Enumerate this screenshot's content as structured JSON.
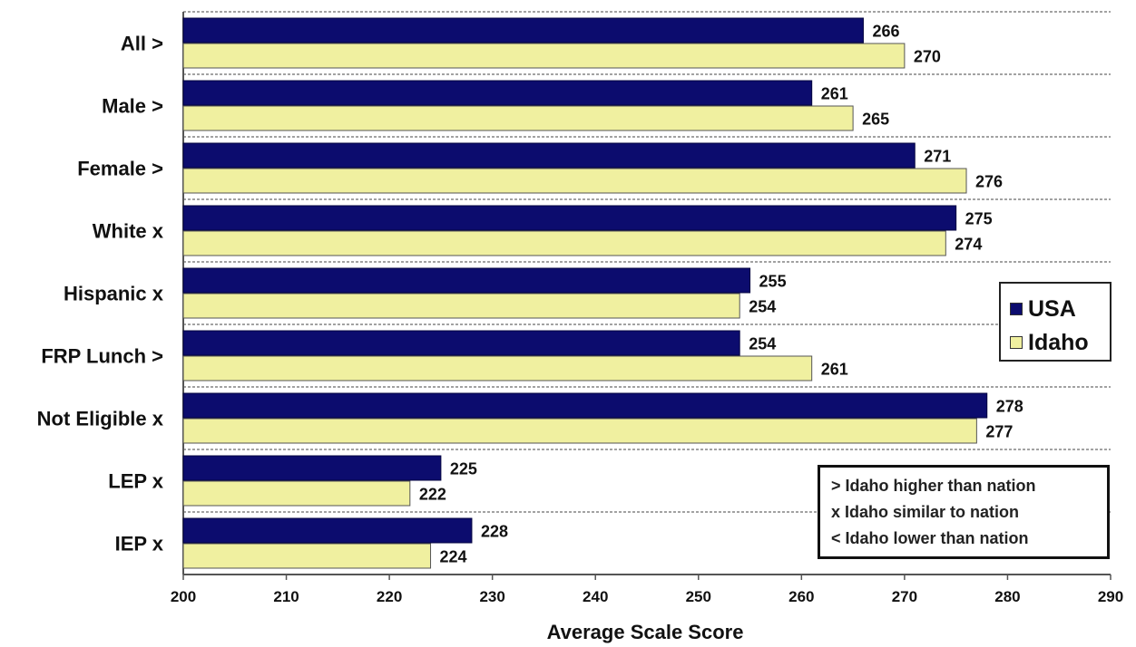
{
  "chart_data": {
    "type": "bar",
    "orientation": "horizontal",
    "categories": [
      "All >",
      "Male >",
      "Female >",
      "White x",
      "Hispanic x",
      "FRP Lunch >",
      "Not Eligible x",
      "LEP x",
      "IEP x"
    ],
    "series": [
      {
        "name": "USA",
        "color": "#0c0c6e",
        "values": [
          266,
          261,
          271,
          275,
          255,
          254,
          278,
          225,
          228
        ]
      },
      {
        "name": "Idaho",
        "color": "#f0f0a0",
        "values": [
          270,
          265,
          276,
          274,
          254,
          261,
          277,
          222,
          224
        ]
      }
    ],
    "xlabel": "Average Scale Score",
    "ylabel": "",
    "xlim": [
      200,
      290
    ],
    "xticks": [
      200,
      210,
      220,
      230,
      240,
      250,
      260,
      270,
      280,
      290
    ],
    "grid": "dashed horizontal separators between categories",
    "legend_placement": "right"
  },
  "legend": {
    "usa_label": "USA",
    "idaho_label": "Idaho"
  },
  "notes": [
    "> Idaho higher than nation",
    "x Idaho similar to nation",
    "< Idaho lower than nation"
  ]
}
